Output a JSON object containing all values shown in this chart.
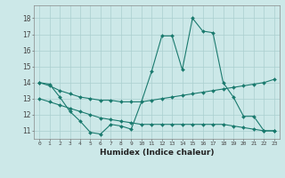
{
  "xlabel": "Humidex (Indice chaleur)",
  "x_ticks": [
    0,
    1,
    2,
    3,
    4,
    5,
    6,
    7,
    8,
    9,
    10,
    11,
    12,
    13,
    14,
    15,
    16,
    17,
    18,
    19,
    20,
    21,
    22,
    23
  ],
  "x_tick_labels": [
    "0",
    "1",
    "2",
    "3",
    "4",
    "5",
    "6",
    "7",
    "8",
    "9",
    "10",
    "11",
    "12",
    "13",
    "14",
    "15",
    "16",
    "17",
    "18",
    "19",
    "20",
    "21",
    "22",
    "23"
  ],
  "ylim": [
    10.5,
    18.8
  ],
  "y_ticks": [
    11,
    12,
    13,
    14,
    15,
    16,
    17,
    18
  ],
  "line_color": "#1a7a6e",
  "bg_color": "#cce8e8",
  "grid_color": "#aacfcf",
  "series1": {
    "x": [
      0,
      1,
      2,
      3,
      4,
      5,
      6,
      7,
      8,
      9,
      10,
      11,
      12,
      13,
      14,
      15,
      16,
      17,
      18,
      19,
      20,
      21,
      22,
      23
    ],
    "y": [
      14.0,
      13.9,
      13.1,
      12.2,
      11.6,
      10.9,
      10.8,
      11.4,
      11.3,
      11.1,
      12.8,
      14.7,
      16.9,
      16.9,
      14.8,
      18.0,
      17.2,
      17.1,
      14.0,
      13.1,
      11.9,
      11.9,
      11.0,
      11.0
    ]
  },
  "series2": {
    "x": [
      0,
      1,
      2,
      3,
      4,
      5,
      6,
      7,
      8,
      9,
      10,
      11,
      12,
      13,
      14,
      15,
      16,
      17,
      18,
      19,
      20,
      21,
      22,
      23
    ],
    "y": [
      14.0,
      13.8,
      13.5,
      13.3,
      13.1,
      13.0,
      12.9,
      12.9,
      12.8,
      12.8,
      12.8,
      12.9,
      13.0,
      13.1,
      13.2,
      13.3,
      13.4,
      13.5,
      13.6,
      13.7,
      13.8,
      13.9,
      14.0,
      14.2
    ]
  },
  "series3": {
    "x": [
      0,
      1,
      2,
      3,
      4,
      5,
      6,
      7,
      8,
      9,
      10,
      11,
      12,
      13,
      14,
      15,
      16,
      17,
      18,
      19,
      20,
      21,
      22,
      23
    ],
    "y": [
      13.0,
      12.8,
      12.6,
      12.4,
      12.2,
      12.0,
      11.8,
      11.7,
      11.6,
      11.5,
      11.4,
      11.4,
      11.4,
      11.4,
      11.4,
      11.4,
      11.4,
      11.4,
      11.4,
      11.3,
      11.2,
      11.1,
      11.0,
      11.0
    ]
  }
}
